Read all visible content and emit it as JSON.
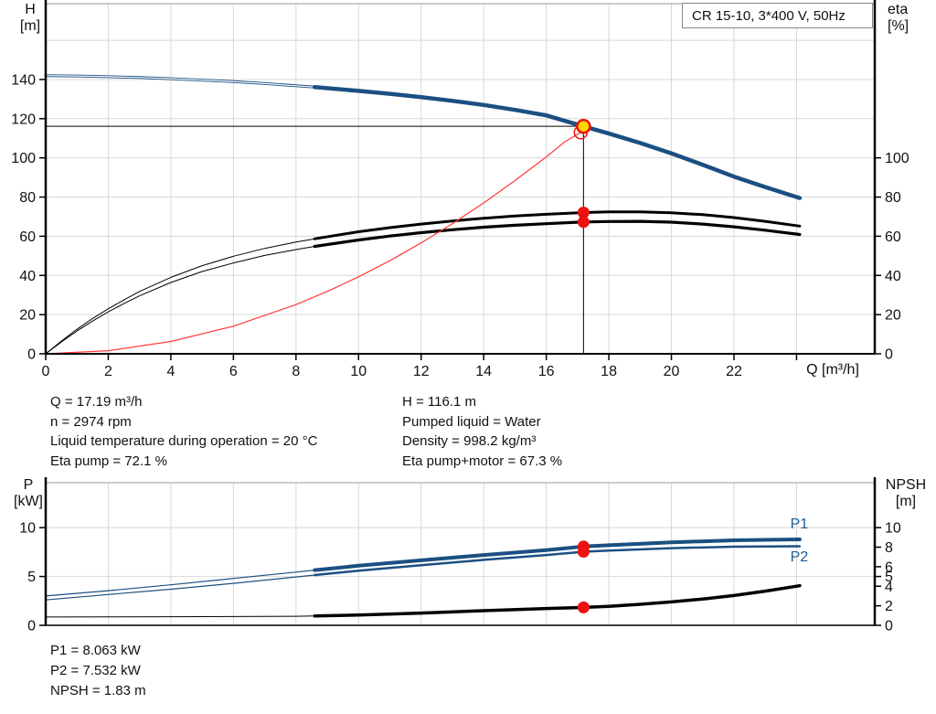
{
  "title_box": {
    "label": "CR 15-10, 3*400 V, 50Hz"
  },
  "info_top": {
    "left": [
      "Q = 17.19 m³/h",
      "n = 2974 rpm",
      "Liquid temperature during operation = 20 °C",
      "Eta pump = 72.1 %"
    ],
    "right": [
      "H = 116.1 m",
      "Pumped liquid = Water",
      "Density = 998.2 kg/m³",
      "Eta pump+motor = 67.3 %"
    ]
  },
  "info_bottom": [
    "P1 = 8.063 kW",
    "P2 = 7.532 kW",
    "NPSH = 1.83 m"
  ],
  "colors": {
    "curve_blue": "#1b4f82",
    "curve_black": "#000000",
    "system_red": "#ff3b3b",
    "marker_red": "#ee1111",
    "duty_yellow": "#ffd500",
    "grid": "#d8d8d8",
    "frame_gray": "#9a9a9a",
    "label_blue": "#1b5d99"
  },
  "chart_data": [
    {
      "type": "line",
      "title": "CR 15-10, 3*400 V, 50Hz",
      "x_label": "Q [m³/h]",
      "y_left_label_lines": [
        "H",
        "[m]"
      ],
      "y_right_label_lines": [
        "eta",
        "[%]"
      ],
      "x_max": 26.5,
      "v_max": 178.7,
      "x_ticks": [
        {
          "v": 0,
          "label": "0"
        },
        {
          "v": 2,
          "label": "2"
        },
        {
          "v": 4,
          "label": "4"
        },
        {
          "v": 6,
          "label": "6"
        },
        {
          "v": 8,
          "label": "8"
        },
        {
          "v": 10,
          "label": "10"
        },
        {
          "v": 12,
          "label": "12"
        },
        {
          "v": 14,
          "label": "14"
        },
        {
          "v": 16,
          "label": "16"
        },
        {
          "v": 18,
          "label": "18"
        },
        {
          "v": 20,
          "label": "20"
        },
        {
          "v": 22,
          "label": "22"
        },
        {
          "v": 24,
          "label": ""
        }
      ],
      "y_grid": [
        20,
        40,
        60,
        80,
        100,
        120,
        140,
        160
      ],
      "y_left_ticks": [
        {
          "v": 0,
          "label": "0"
        },
        {
          "v": 20,
          "label": "20"
        },
        {
          "v": 40,
          "label": "40"
        },
        {
          "v": 60,
          "label": "60"
        },
        {
          "v": 80,
          "label": "80"
        },
        {
          "v": 100,
          "label": "100"
        },
        {
          "v": 120,
          "label": "120"
        },
        {
          "v": 140,
          "label": "140"
        }
      ],
      "y_right_ticks": [
        {
          "v": 0,
          "label": "0"
        },
        {
          "v": 20,
          "label": "20"
        },
        {
          "v": 40,
          "label": "40"
        },
        {
          "v": 60,
          "label": "60"
        },
        {
          "v": 80,
          "label": "80"
        },
        {
          "v": 100,
          "label": "100"
        }
      ],
      "series": [
        {
          "name": "qh-curve-thin",
          "color": "#1b4f82",
          "width": 3,
          "outline": true,
          "points": [
            [
              0,
              142
            ],
            [
              1,
              141.8
            ],
            [
              2,
              141.4
            ],
            [
              3,
              141
            ],
            [
              4,
              140.4
            ],
            [
              5,
              139.7
            ],
            [
              6,
              138.9
            ],
            [
              7,
              137.9
            ],
            [
              8,
              136.8
            ],
            [
              8.6,
              136.1
            ]
          ]
        },
        {
          "name": "qh-curve",
          "color": "#1b4f82",
          "width": 4.5,
          "points": [
            [
              8.6,
              136.1
            ],
            [
              10,
              134.2
            ],
            [
              11,
              132.7
            ],
            [
              12,
              131
            ],
            [
              13,
              129.1
            ],
            [
              14,
              127
            ],
            [
              15,
              124.5
            ],
            [
              16,
              121.7
            ],
            [
              17.19,
              116.1
            ],
            [
              18,
              112.4
            ],
            [
              19,
              107.6
            ],
            [
              20,
              102.3
            ],
            [
              21,
              96.5
            ],
            [
              22,
              90.4
            ],
            [
              23,
              85.1
            ],
            [
              24.1,
              79.5
            ]
          ]
        },
        {
          "name": "eta-pump-curve-thin",
          "color": "#000000",
          "width": 1,
          "points": [
            [
              0,
              0
            ],
            [
              0.5,
              6.5
            ],
            [
              1,
              12.5
            ],
            [
              1.5,
              18
            ],
            [
              2,
              23
            ],
            [
              2.5,
              27.5
            ],
            [
              3,
              31.8
            ],
            [
              4,
              39
            ],
            [
              5,
              45
            ],
            [
              6,
              49.8
            ],
            [
              7,
              53.8
            ],
            [
              8,
              57
            ],
            [
              8.6,
              58.7
            ]
          ]
        },
        {
          "name": "eta-pump-curve",
          "color": "#000000",
          "width": 3,
          "points": [
            [
              8.6,
              58.7
            ],
            [
              10,
              62.3
            ],
            [
              11,
              64.4
            ],
            [
              12,
              66.2
            ],
            [
              13,
              67.8
            ],
            [
              14,
              69.2
            ],
            [
              15,
              70.3
            ],
            [
              16,
              71.2
            ],
            [
              17.19,
              72.1
            ],
            [
              18,
              72.4
            ],
            [
              19,
              72.4
            ],
            [
              20,
              72
            ],
            [
              21,
              71
            ],
            [
              22,
              69.5
            ],
            [
              23,
              67.6
            ],
            [
              24.1,
              65.2
            ]
          ]
        },
        {
          "name": "eta-pump-motor-curve-thin",
          "color": "#000000",
          "width": 1,
          "points": [
            [
              0,
              0
            ],
            [
              0.5,
              6
            ],
            [
              1,
              11.6
            ],
            [
              1.5,
              16.7
            ],
            [
              2,
              21.4
            ],
            [
              2.5,
              25.6
            ],
            [
              3,
              29.6
            ],
            [
              4,
              36.4
            ],
            [
              5,
              42
            ],
            [
              6,
              46.4
            ],
            [
              7,
              50.2
            ],
            [
              8,
              53.2
            ],
            [
              8.6,
              54.8
            ]
          ]
        },
        {
          "name": "eta-pump-motor-curve",
          "color": "#000000",
          "width": 3.2,
          "points": [
            [
              8.6,
              54.8
            ],
            [
              10,
              58.1
            ],
            [
              11,
              60.1
            ],
            [
              12,
              61.8
            ],
            [
              13,
              63.3
            ],
            [
              14,
              64.6
            ],
            [
              15,
              65.6
            ],
            [
              16,
              66.4
            ],
            [
              17.19,
              67.3
            ],
            [
              18,
              67.5
            ],
            [
              19,
              67.6
            ],
            [
              20,
              67.2
            ],
            [
              21,
              66.2
            ],
            [
              22,
              64.8
            ],
            [
              23,
              63.1
            ],
            [
              24.1,
              60.9
            ]
          ]
        },
        {
          "name": "system-curve",
          "color": "#ff3b3b",
          "width": 1.2,
          "points": [
            [
              0,
              0
            ],
            [
              2,
              1.6
            ],
            [
              4,
              6.3
            ],
            [
              6,
              14.1
            ],
            [
              8,
              25.1
            ],
            [
              9,
              31.8
            ],
            [
              10,
              39.3
            ],
            [
              11,
              47.5
            ],
            [
              12,
              56.6
            ],
            [
              13,
              66.4
            ],
            [
              14,
              77
            ],
            [
              15,
              88.4
            ],
            [
              16,
              100.5
            ],
            [
              16.6,
              108.3
            ],
            [
              17.1,
              113
            ]
          ]
        }
      ],
      "crosshair": {
        "x": 17.19,
        "v": 116.1
      },
      "markers": [
        {
          "kind": "dot",
          "x": 17.19,
          "v": 72.1,
          "name": "eta-pump-point"
        },
        {
          "kind": "dot",
          "x": 17.19,
          "v": 67.3,
          "name": "eta-pump-motor-point"
        },
        {
          "kind": "open",
          "x": 17.1,
          "v": 113,
          "name": "requested-duty-point"
        },
        {
          "kind": "duty",
          "x": 17.19,
          "v": 116.1,
          "name": "duty-point"
        }
      ],
      "curve_labels": []
    },
    {
      "type": "line",
      "title": "",
      "x_label": "",
      "y_left_label_lines": [
        "P",
        "[kW]"
      ],
      "y_right_label_lines": [
        "NPSH",
        "[m]"
      ],
      "x_max": 26.5,
      "v_max": 14.6,
      "x_ticks": [
        {
          "v": 2,
          "label": ""
        },
        {
          "v": 4,
          "label": ""
        },
        {
          "v": 6,
          "label": ""
        },
        {
          "v": 8,
          "label": ""
        },
        {
          "v": 10,
          "label": ""
        },
        {
          "v": 12,
          "label": ""
        },
        {
          "v": 14,
          "label": ""
        },
        {
          "v": 16,
          "label": ""
        },
        {
          "v": 18,
          "label": ""
        },
        {
          "v": 20,
          "label": ""
        },
        {
          "v": 22,
          "label": ""
        },
        {
          "v": 24,
          "label": ""
        }
      ],
      "y_grid": [
        5,
        10
      ],
      "y_left_ticks": [
        {
          "v": 0,
          "label": "0"
        },
        {
          "v": 5,
          "label": "5"
        },
        {
          "v": 10,
          "label": "10"
        }
      ],
      "y_right_ticks": [
        {
          "v": 0,
          "label": "0"
        },
        {
          "v": 2,
          "label": "2"
        },
        {
          "v": 4,
          "label": "4"
        },
        {
          "v": 5,
          "label": "5"
        },
        {
          "v": 6,
          "label": "6"
        },
        {
          "v": 8,
          "label": "8"
        },
        {
          "v": 10,
          "label": "10"
        }
      ],
      "series": [
        {
          "name": "p1-curve-thin",
          "color": "#1b4f82",
          "width": 1.2,
          "points": [
            [
              0,
              3.0
            ],
            [
              2,
              3.55
            ],
            [
              4,
              4.15
            ],
            [
              6,
              4.8
            ],
            [
              8,
              5.45
            ],
            [
              8.6,
              5.65
            ]
          ]
        },
        {
          "name": "p1-curve",
          "color": "#1b4f82",
          "width": 4,
          "points": [
            [
              8.6,
              5.65
            ],
            [
              10,
              6.1
            ],
            [
              12,
              6.65
            ],
            [
              14,
              7.2
            ],
            [
              16,
              7.7
            ],
            [
              17.19,
              8.063
            ],
            [
              18,
              8.2
            ],
            [
              20,
              8.5
            ],
            [
              22,
              8.7
            ],
            [
              23,
              8.75
            ],
            [
              24.1,
              8.8
            ]
          ]
        },
        {
          "name": "p2-curve-thin",
          "color": "#1b4f82",
          "width": 1.2,
          "points": [
            [
              0,
              2.6
            ],
            [
              2,
              3.15
            ],
            [
              4,
              3.7
            ],
            [
              6,
              4.3
            ],
            [
              8,
              4.95
            ],
            [
              8.6,
              5.15
            ]
          ]
        },
        {
          "name": "p2-curve",
          "color": "#1b4f82",
          "width": 2.5,
          "points": [
            [
              8.6,
              5.15
            ],
            [
              10,
              5.6
            ],
            [
              12,
              6.15
            ],
            [
              14,
              6.7
            ],
            [
              16,
              7.2
            ],
            [
              17.19,
              7.532
            ],
            [
              18,
              7.65
            ],
            [
              20,
              7.9
            ],
            [
              22,
              8.05
            ],
            [
              24.1,
              8.1
            ]
          ]
        },
        {
          "name": "npsh-curve-thin",
          "color": "#000000",
          "width": 1,
          "points": [
            [
              0,
              0.85
            ],
            [
              4,
              0.88
            ],
            [
              8,
              0.93
            ],
            [
              8.6,
              0.95
            ]
          ]
        },
        {
          "name": "npsh-curve",
          "color": "#000000",
          "width": 3.5,
          "points": [
            [
              8.6,
              0.95
            ],
            [
              10,
              1.05
            ],
            [
              12,
              1.25
            ],
            [
              14,
              1.5
            ],
            [
              16,
              1.72
            ],
            [
              17.19,
              1.83
            ],
            [
              18,
              1.95
            ],
            [
              19,
              2.15
            ],
            [
              20,
              2.4
            ],
            [
              21,
              2.7
            ],
            [
              22,
              3.05
            ],
            [
              23,
              3.5
            ],
            [
              24.1,
              4.05
            ]
          ]
        }
      ],
      "crosshair": null,
      "markers": [
        {
          "kind": "dot",
          "x": 17.19,
          "v": 8.063,
          "name": "p1-point"
        },
        {
          "kind": "dot",
          "x": 17.19,
          "v": 7.532,
          "name": "p2-point"
        },
        {
          "kind": "dot",
          "x": 17.19,
          "v": 1.83,
          "name": "npsh-point"
        }
      ],
      "curve_labels": [
        {
          "text": "P1",
          "x": 23.8,
          "v": 9.9
        },
        {
          "text": "P2",
          "x": 23.8,
          "v": 6.55
        }
      ]
    }
  ]
}
